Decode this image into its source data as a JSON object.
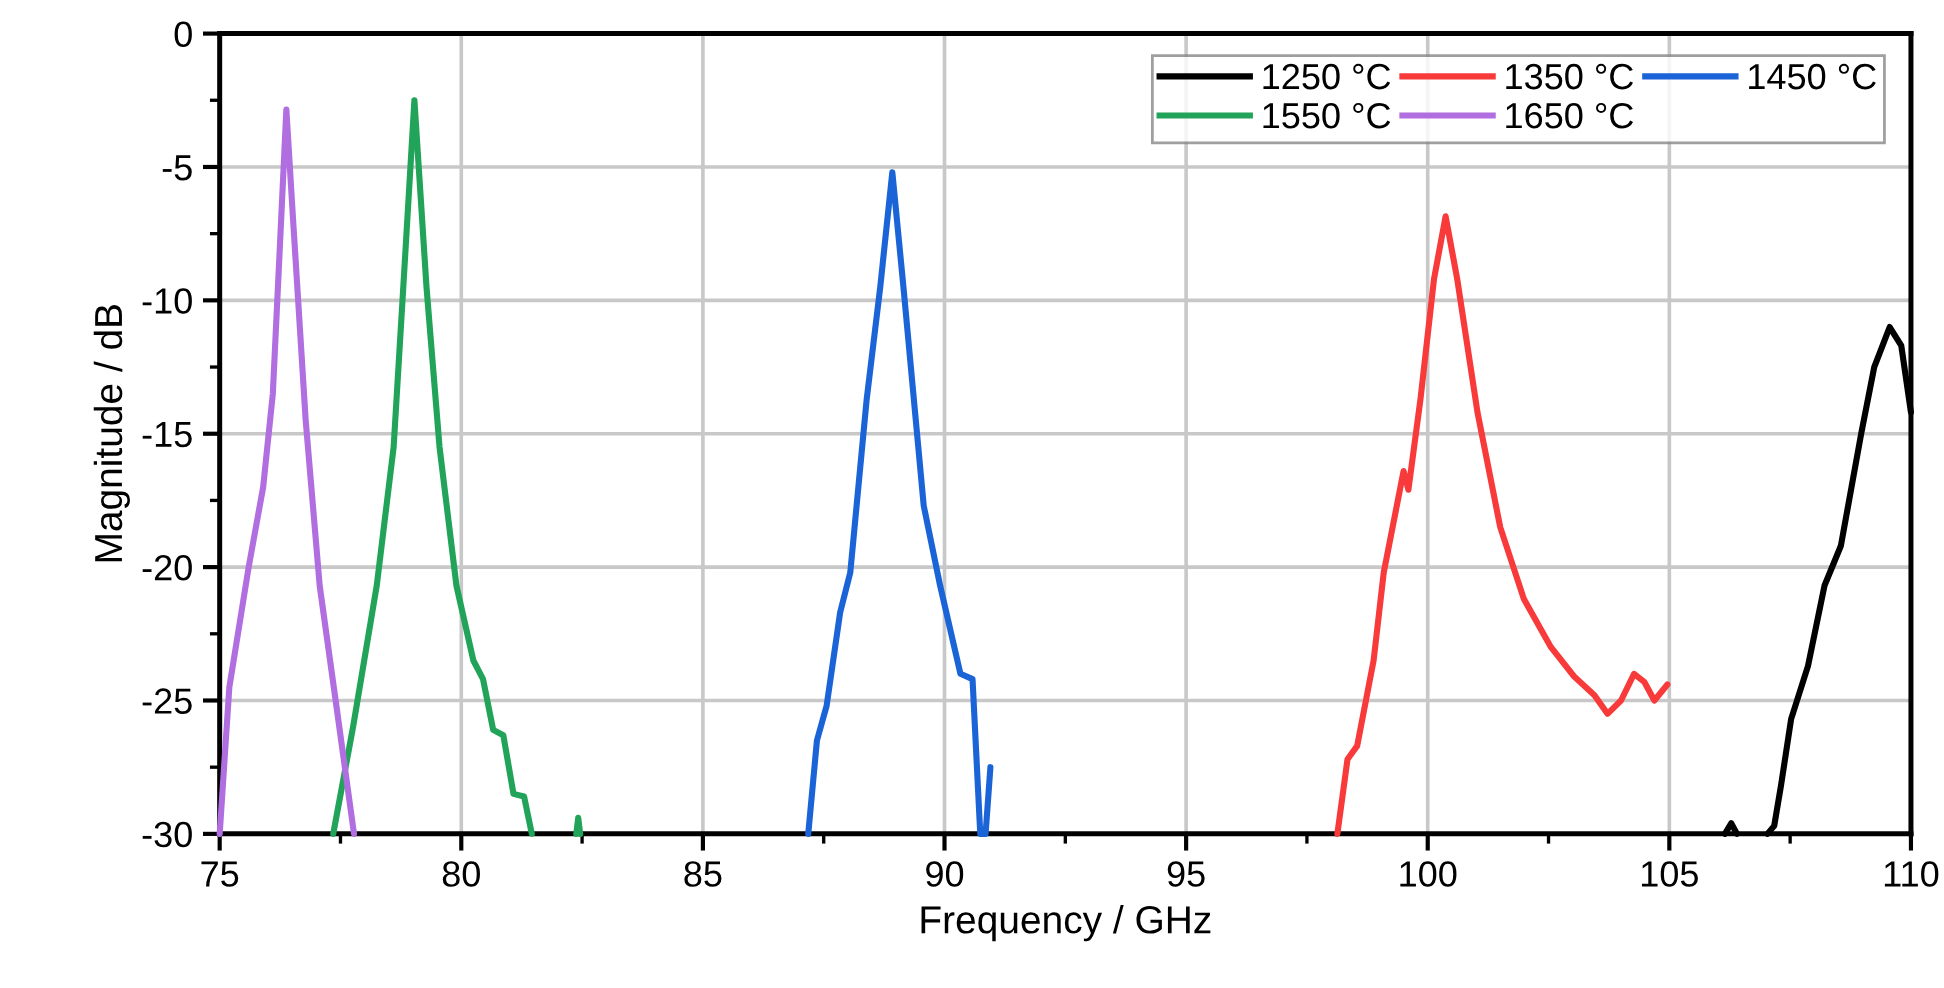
{
  "chart_data": {
    "type": "line",
    "xlabel": "Frequency / GHz",
    "ylabel": "Magnitude / dB",
    "xlim": [
      75,
      110
    ],
    "xticks": [
      75,
      80,
      85,
      90,
      95,
      100,
      105,
      110
    ],
    "ylim": [
      -30,
      0
    ],
    "yticks": [
      -30,
      -25,
      -20,
      -15,
      -10,
      -5,
      0
    ],
    "grid": true,
    "legend": "top right",
    "marker": "none",
    "line_style": "solid",
    "series": [
      {
        "name": "1250 °C",
        "color": "#000000",
        "x": [
          106.15,
          106.28,
          106.4,
          106.45,
          107.03,
          107.17,
          107.31,
          107.52,
          107.87,
          108.21,
          108.55,
          108.97,
          109.24,
          109.56,
          109.8,
          110
        ],
        "values": [
          -30,
          -29.6,
          -30,
          null,
          -30,
          -29.7,
          -28.2,
          -25.7,
          -23.7,
          -20.7,
          -19.2,
          -15,
          -12.5,
          -11,
          -11.7,
          -14.2
        ]
      },
      {
        "name": "1350 °C",
        "color": "#f83a3a",
        "x": [
          98.13,
          98.34,
          98.54,
          98.88,
          99.09,
          99.5,
          99.6,
          99.85,
          100.13,
          100.37,
          100.61,
          101.03,
          101.5,
          101.99,
          102.55,
          103.03,
          103.45,
          103.72,
          104.0,
          104.27,
          104.48,
          104.69,
          104.96
        ],
        "values": [
          -30,
          -27.2,
          -26.7,
          -23.5,
          -20.2,
          -16.4,
          -17.1,
          -13.7,
          -9.2,
          -6.85,
          -9.2,
          -14.2,
          -18.5,
          -21.2,
          -23,
          -24.1,
          -24.8,
          -25.5,
          -25,
          -24,
          -24.3,
          -25,
          -24.4
        ]
      },
      {
        "name": "1450 °C",
        "color": "#1a64d8",
        "x": [
          87.18,
          87.36,
          87.56,
          87.84,
          88.05,
          88.39,
          88.67,
          88.92,
          89.15,
          89.57,
          89.91,
          90.33,
          90.58,
          90.74,
          90.85,
          90.95
        ],
        "values": [
          -30,
          -26.5,
          -25.2,
          -21.7,
          -20.2,
          -13.7,
          -9.5,
          -5.2,
          -9.5,
          -17.7,
          -20.7,
          -24,
          -24.2,
          -30,
          -30,
          -27.5
        ]
      },
      {
        "name": "1550 °C",
        "color": "#22a35a",
        "x": [
          77.35,
          77.76,
          78.25,
          78.6,
          78.8,
          79.03,
          79.28,
          79.55,
          79.9,
          80.25,
          80.45,
          80.66,
          80.87,
          81.08,
          81.3,
          81.46,
          82.0,
          82.38,
          82.42,
          82.46
        ],
        "values": [
          -30,
          -26,
          -20.7,
          -15.5,
          -9.5,
          -2.5,
          -9.5,
          -15.5,
          -20.7,
          -23.5,
          -24.2,
          -26.1,
          -26.3,
          -28.5,
          -28.6,
          -30,
          null,
          -30,
          -29.4,
          -30
        ]
      },
      {
        "name": "1650 °C",
        "color": "#b06ee0",
        "x": [
          75.0,
          75.2,
          75.6,
          75.9,
          76.1,
          76.24,
          76.38,
          76.52,
          76.78,
          77.07,
          77.4,
          77.78
        ],
        "values": [
          -30,
          -24.5,
          -20,
          -17,
          -13.5,
          -8.2,
          -2.85,
          -7,
          -14.5,
          -20.7,
          -25,
          -30
        ]
      }
    ]
  }
}
